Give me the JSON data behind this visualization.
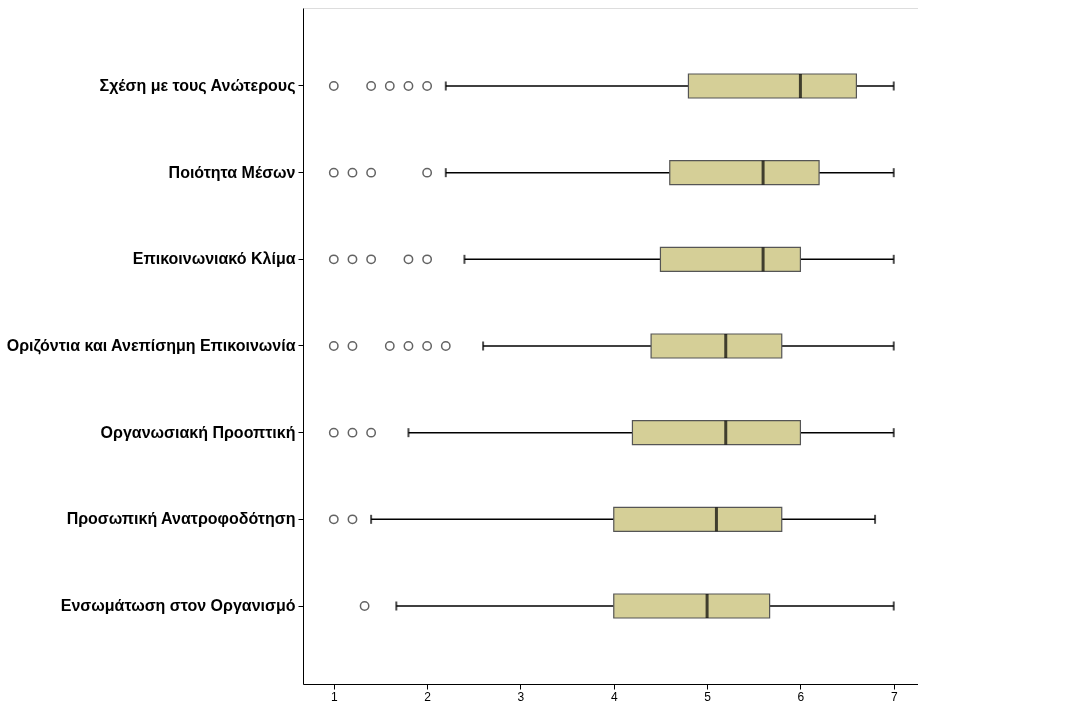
{
  "chart_data": {
    "type": "box",
    "categories": [
      "Σχέση με τους Ανώτερους",
      "Ποιότητα Μέσων",
      "Επικοινωνιακό Κλίμα",
      "Οριζόντια και Ανεπίσημη Επικοινωνία",
      "Οργανωσιακή Προοπτική",
      "Προσωπική Ανατροφοδότηση",
      "Ενσωμάτωση στον Οργανισμό"
    ],
    "series": [
      {
        "color": "#d5cf97",
        "boxes": [
          {
            "low": 2.2,
            "q1": 4.8,
            "median": 6.0,
            "q3": 6.6,
            "high": 7,
            "outliers": [
              1,
              1.4,
              1.6,
              1.8,
              2.0
            ]
          },
          {
            "low": 2.2,
            "q1": 4.6,
            "median": 5.6,
            "q3": 6.2,
            "high": 7,
            "outliers": [
              1,
              1.2,
              1.4,
              2.0
            ]
          },
          {
            "low": 2.4,
            "q1": 4.5,
            "median": 5.6,
            "q3": 6.0,
            "high": 7,
            "outliers": [
              1,
              1.2,
              1.4,
              1.8,
              2.0
            ]
          },
          {
            "low": 2.6,
            "q1": 4.4,
            "median": 5.2,
            "q3": 5.8,
            "high": 7,
            "outliers": [
              1,
              1.2,
              1.6,
              1.8,
              2.0,
              2.2
            ]
          },
          {
            "low": 1.8,
            "q1": 4.2,
            "median": 5.2,
            "q3": 6.0,
            "high": 7,
            "outliers": [
              1,
              1.2,
              1.4
            ]
          },
          {
            "low": 1.4,
            "q1": 4.0,
            "median": 5.1,
            "q3": 5.8,
            "high": 6.8,
            "outliers": [
              1,
              1.2
            ]
          },
          {
            "low": 1.67,
            "q1": 4.0,
            "median": 5.0,
            "q3": 5.67,
            "high": 7,
            "outliers": [
              1.33
            ]
          }
        ]
      }
    ],
    "orientation": "horizontal",
    "xlim": [
      0.67,
      7.26
    ],
    "xticks": [
      1,
      2,
      3,
      4,
      5,
      6,
      7
    ],
    "grid": false,
    "legend": false
  }
}
